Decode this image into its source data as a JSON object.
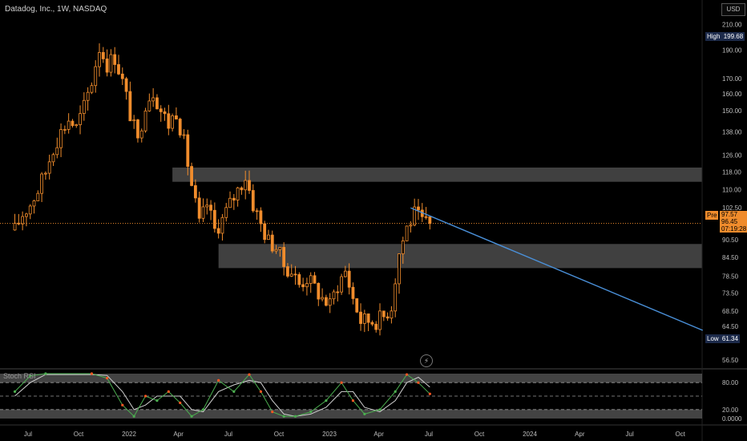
{
  "header": {
    "title": "Datadog, Inc., 1W, NASDAQ",
    "currency": "USD",
    "indicator_label": "Stoch RSI"
  },
  "badges": {
    "high_label": "High",
    "high_value": "199.68",
    "low_label": "Low",
    "low_value": "61.34",
    "pre_label": "Pre",
    "pre_value": "97.57",
    "last_price": "96.45",
    "countdown": "07:19:28"
  },
  "colors": {
    "background": "#000000",
    "candle": "#f08c2c",
    "zone": "#555555",
    "trendline": "#4a90d9",
    "stoch_k": "#4caf50",
    "stoch_k_down": "#ff5722",
    "stoch_d": "#d0d0d0",
    "band": "#7a7a7a"
  },
  "chart_data": [
    {
      "type": "candlestick",
      "title": "Datadog, Inc., 1W, NASDAQ",
      "price_axis_labels": [
        "210.00",
        "190.00",
        "170.00",
        "160.00",
        "150.00",
        "138.00",
        "126.00",
        "118.00",
        "110.00",
        "102.50",
        "90.50",
        "84.50",
        "78.50",
        "73.50",
        "68.50",
        "64.50",
        "56.50"
      ],
      "time_axis_labels": [
        "Jul",
        "Oct",
        "2022",
        "Apr",
        "Jul",
        "Oct",
        "2023",
        "Apr",
        "Jul",
        "Oct",
        "2024",
        "Apr",
        "Jul",
        "Oct"
      ],
      "high": 199.68,
      "low": 61.34,
      "last_price": 96.45,
      "premarket_price": 97.57,
      "close_path": [
        [
          "2021-06-07",
          94
        ],
        [
          "2021-06-21",
          100
        ],
        [
          "2021-07-05",
          104
        ],
        [
          "2021-07-19",
          110
        ],
        [
          "2021-08-02",
          118
        ],
        [
          "2021-08-16",
          130
        ],
        [
          "2021-08-30",
          138
        ],
        [
          "2021-09-13",
          145
        ],
        [
          "2021-09-27",
          140
        ],
        [
          "2021-10-11",
          152
        ],
        [
          "2021-10-25",
          168
        ],
        [
          "2021-11-08",
          192
        ],
        [
          "2021-11-22",
          180
        ],
        [
          "2021-12-06",
          185
        ],
        [
          "2021-12-20",
          168
        ],
        [
          "2022-01-03",
          148
        ],
        [
          "2022-01-17",
          132
        ],
        [
          "2022-01-31",
          155
        ],
        [
          "2022-02-14",
          162
        ],
        [
          "2022-02-28",
          150
        ],
        [
          "2022-03-14",
          142
        ],
        [
          "2022-03-28",
          150
        ],
        [
          "2022-04-11",
          132
        ],
        [
          "2022-04-25",
          112
        ],
        [
          "2022-05-09",
          96
        ],
        [
          "2022-05-23",
          104
        ],
        [
          "2022-06-06",
          94
        ],
        [
          "2022-06-20",
          98
        ],
        [
          "2022-07-04",
          104
        ],
        [
          "2022-07-18",
          110
        ],
        [
          "2022-08-01",
          116
        ],
        [
          "2022-08-15",
          104
        ],
        [
          "2022-08-29",
          96
        ],
        [
          "2022-09-12",
          90
        ],
        [
          "2022-09-26",
          88
        ],
        [
          "2022-10-10",
          82
        ],
        [
          "2022-10-24",
          80
        ],
        [
          "2022-11-07",
          76
        ],
        [
          "2022-11-21",
          78
        ],
        [
          "2022-12-05",
          75
        ],
        [
          "2022-12-19",
          72
        ],
        [
          "2023-01-02",
          70
        ],
        [
          "2023-01-16",
          76
        ],
        [
          "2023-01-30",
          80
        ],
        [
          "2023-02-13",
          72
        ],
        [
          "2023-02-27",
          66
        ],
        [
          "2023-03-13",
          66
        ],
        [
          "2023-03-27",
          66
        ],
        [
          "2023-04-10",
          67
        ],
        [
          "2023-04-24",
          70
        ],
        [
          "2023-05-08",
          86
        ],
        [
          "2023-05-22",
          95
        ],
        [
          "2023-06-05",
          100
        ],
        [
          "2023-06-19",
          97
        ],
        [
          "2023-07-03",
          96
        ]
      ],
      "zones": [
        {
          "top": 120.0,
          "bottom": 113.5
        },
        {
          "top": 89.0,
          "bottom": 81.0
        }
      ],
      "trendline": {
        "from": [
          "2023-05-29",
          102.5
        ],
        "to": [
          "2024-11-11",
          63.5
        ]
      }
    },
    {
      "type": "line",
      "title": "Stoch RSI",
      "y_axis_labels": [
        "80.00",
        "20.00",
        "0.0000"
      ],
      "bands": [
        80,
        50,
        20
      ],
      "series": [
        {
          "name": "K",
          "points": [
            [
              "2021-06-07",
              60
            ],
            [
              "2021-07-05",
              95
            ],
            [
              "2021-08-02",
              100
            ],
            [
              "2021-10-25",
              100
            ],
            [
              "2021-11-22",
              90
            ],
            [
              "2021-12-20",
              30
            ],
            [
              "2022-01-10",
              5
            ],
            [
              "2022-01-31",
              50
            ],
            [
              "2022-02-21",
              40
            ],
            [
              "2022-03-14",
              60
            ],
            [
              "2022-04-04",
              35
            ],
            [
              "2022-04-25",
              5
            ],
            [
              "2022-05-16",
              20
            ],
            [
              "2022-06-13",
              85
            ],
            [
              "2022-07-11",
              60
            ],
            [
              "2022-08-08",
              98
            ],
            [
              "2022-08-29",
              60
            ],
            [
              "2022-09-19",
              15
            ],
            [
              "2022-10-10",
              5
            ],
            [
              "2022-10-31",
              5
            ],
            [
              "2022-11-28",
              15
            ],
            [
              "2022-12-26",
              40
            ],
            [
              "2023-01-23",
              80
            ],
            [
              "2023-02-13",
              40
            ],
            [
              "2023-03-06",
              10
            ],
            [
              "2023-04-03",
              20
            ],
            [
              "2023-05-01",
              60
            ],
            [
              "2023-05-22",
              98
            ],
            [
              "2023-06-12",
              80
            ],
            [
              "2023-07-03",
              55
            ]
          ]
        },
        {
          "name": "D",
          "points": [
            [
              "2021-06-07",
              50
            ],
            [
              "2021-07-05",
              80
            ],
            [
              "2021-08-02",
              98
            ],
            [
              "2021-10-25",
              98
            ],
            [
              "2021-11-22",
              96
            ],
            [
              "2021-12-20",
              60
            ],
            [
              "2022-01-10",
              20
            ],
            [
              "2022-01-31",
              30
            ],
            [
              "2022-02-21",
              50
            ],
            [
              "2022-03-14",
              50
            ],
            [
              "2022-04-04",
              50
            ],
            [
              "2022-04-25",
              20
            ],
            [
              "2022-05-16",
              15
            ],
            [
              "2022-06-13",
              60
            ],
            [
              "2022-07-11",
              75
            ],
            [
              "2022-08-08",
              85
            ],
            [
              "2022-08-29",
              80
            ],
            [
              "2022-09-19",
              40
            ],
            [
              "2022-10-10",
              10
            ],
            [
              "2022-10-31",
              5
            ],
            [
              "2022-11-28",
              10
            ],
            [
              "2022-12-26",
              25
            ],
            [
              "2023-01-23",
              60
            ],
            [
              "2023-02-13",
              60
            ],
            [
              "2023-03-06",
              25
            ],
            [
              "2023-04-03",
              15
            ],
            [
              "2023-05-01",
              40
            ],
            [
              "2023-05-22",
              80
            ],
            [
              "2023-06-12",
              92
            ],
            [
              "2023-07-03",
              70
            ]
          ]
        }
      ]
    }
  ]
}
